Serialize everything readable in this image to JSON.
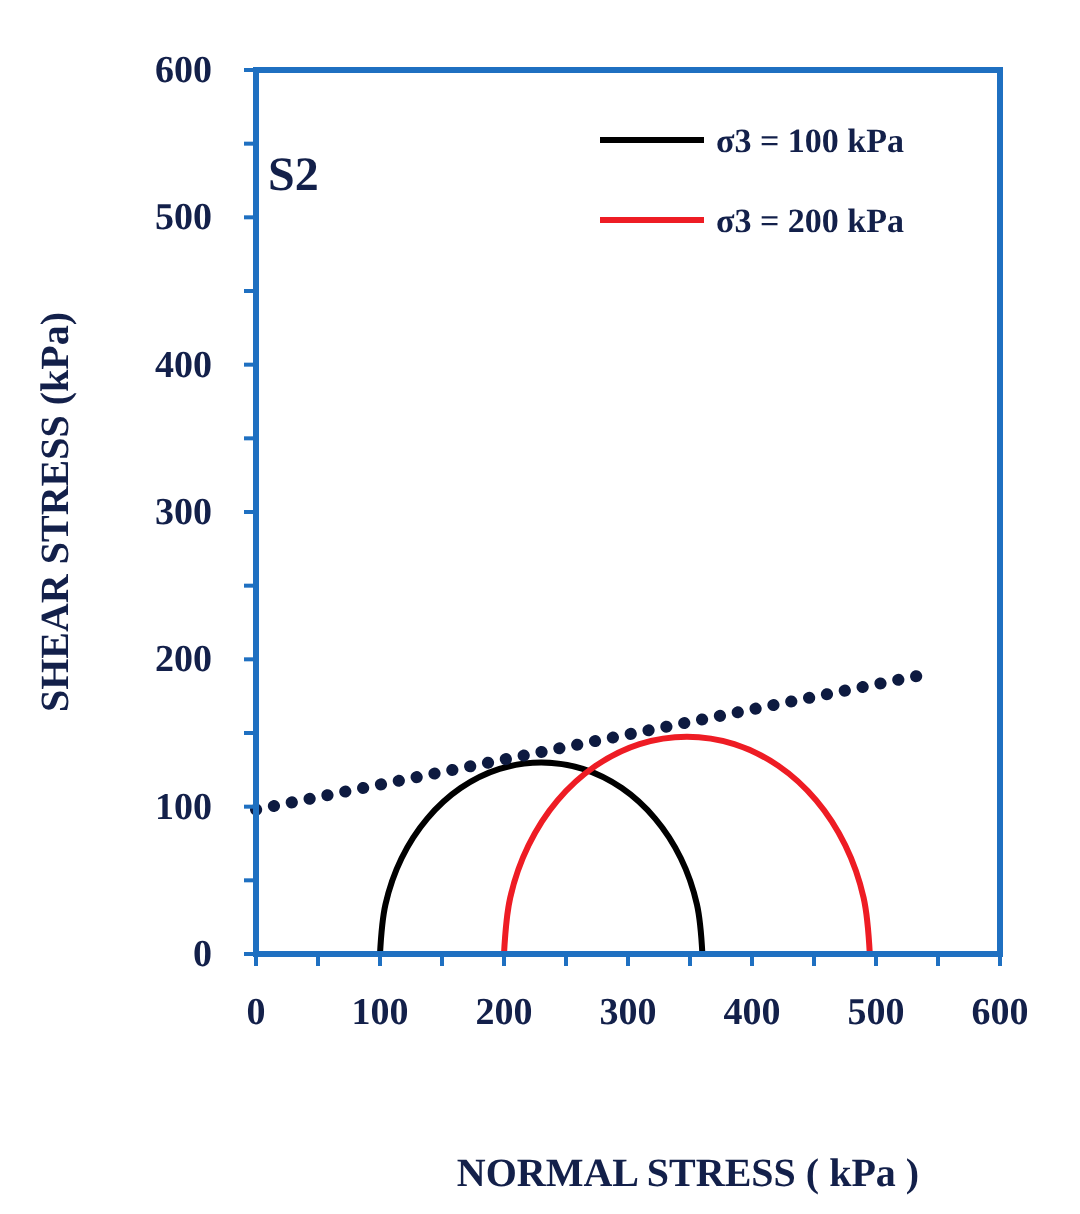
{
  "chart_data": {
    "type": "line",
    "xlabel": "NORMAL STRESS  ( kPa )",
    "ylabel": "SHEAR STRESS  (kPa)",
    "annotations": [
      "S2"
    ],
    "xlim": [
      0,
      600
    ],
    "ylim": [
      0,
      600
    ],
    "xticks": [
      0,
      {
        "value": 50,
        "label": null
      },
      100,
      {
        "value": 150,
        "label": null
      },
      200,
      {
        "value": 250,
        "label": null
      },
      300,
      {
        "value": 350,
        "label": null
      },
      400,
      {
        "value": 450,
        "label": null
      },
      500,
      {
        "value": 550,
        "label": null
      },
      600
    ],
    "yticks": [
      0,
      {
        "value": 50,
        "label": null
      },
      100,
      {
        "value": 150,
        "label": null
      },
      200,
      {
        "value": 250,
        "label": null
      },
      300,
      {
        "value": 350,
        "label": null
      },
      400,
      {
        "value": 450,
        "label": null
      },
      500,
      {
        "value": 550,
        "label": null
      },
      600
    ],
    "grid": false,
    "legend": "top right",
    "marker": "none",
    "series": [
      {
        "name": "σ3 = 100 kPa",
        "color": "#000000",
        "line_style": "solid",
        "x": [
          100,
          104.4,
          117.4,
          138.1,
          165,
          196.4,
          230,
          263.6,
          295,
          321.9,
          342.6,
          355.6,
          360
        ],
        "values": [
          0,
          33.6,
          65,
          91.9,
          112.6,
          125.6,
          130,
          125.6,
          112.6,
          91.9,
          65,
          33.6,
          0
        ]
      },
      {
        "name": "σ3 = 200 kPa",
        "color": "#ee1c24",
        "line_style": "solid",
        "x": [
          200,
          205,
          219.8,
          243.2,
          273.8,
          309.3,
          347.5,
          385.7,
          421.3,
          451.8,
          475.2,
          490,
          495
        ],
        "values": [
          0,
          38.2,
          73.8,
          104.3,
          127.7,
          142.5,
          147.5,
          142.5,
          127.7,
          104.3,
          73.8,
          38.2,
          0
        ]
      },
      {
        "color": "#0d1a40",
        "line_style": "dotted",
        "x": [
          0,
          535
        ],
        "values": [
          98,
          189
        ]
      }
    ]
  }
}
